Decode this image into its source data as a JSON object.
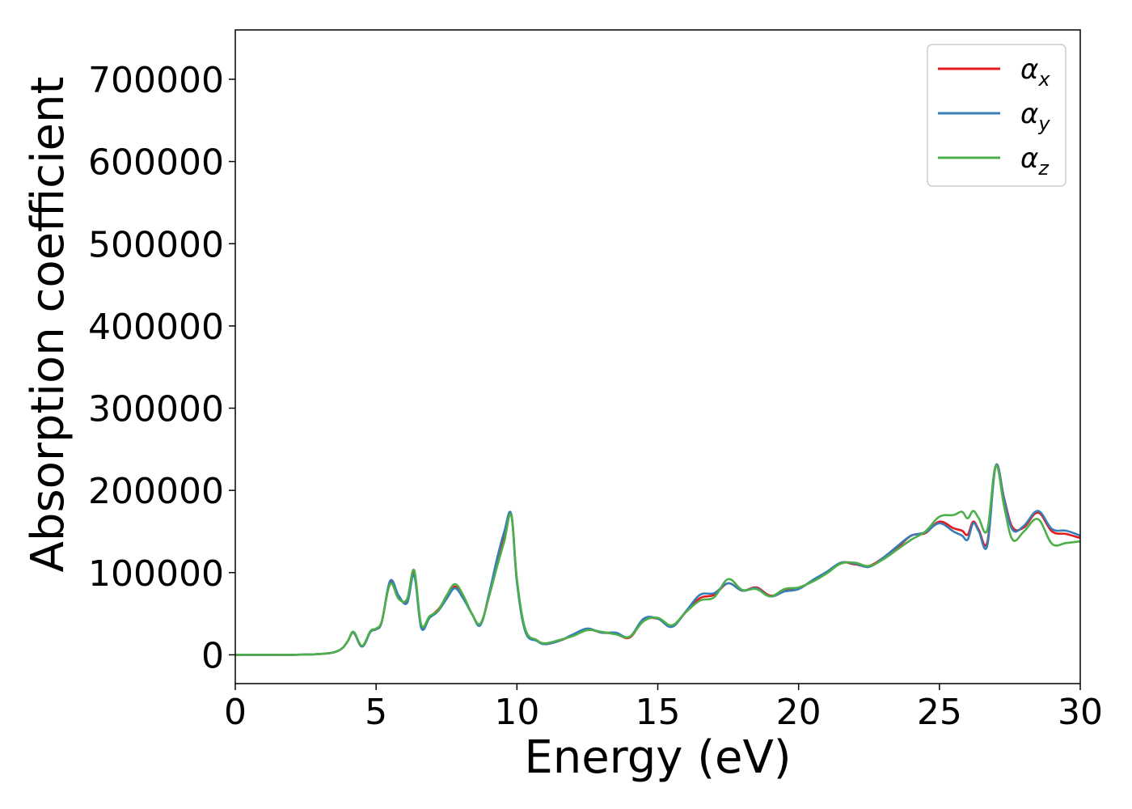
{
  "chart_data": {
    "type": "line",
    "title": "",
    "xlabel": "Energy (eV)",
    "ylabel": "Absorption coefficient",
    "xlim": [
      0,
      30
    ],
    "ylim": [
      -35000,
      760000
    ],
    "xticks": [
      0,
      5,
      10,
      15,
      20,
      25,
      30
    ],
    "yticks": [
      0,
      100000,
      200000,
      300000,
      400000,
      500000,
      600000,
      700000
    ],
    "xtick_labels": [
      "0",
      "5",
      "10",
      "15",
      "20",
      "25",
      "30"
    ],
    "ytick_labels": [
      "0",
      "100000",
      "200000",
      "300000",
      "400000",
      "500000",
      "600000",
      "700000"
    ],
    "grid": false,
    "legend_position": "top-right",
    "x": [
      0,
      1,
      2,
      3,
      3.5,
      3.8,
      4.0,
      4.2,
      4.5,
      4.8,
      5.0,
      5.2,
      5.5,
      5.8,
      6.1,
      6.35,
      6.6,
      6.9,
      7.2,
      7.5,
      7.8,
      8.1,
      8.4,
      8.7,
      9.0,
      9.3,
      9.55,
      9.8,
      10.0,
      10.3,
      10.7,
      11.0,
      11.5,
      12.0,
      12.5,
      13.0,
      13.5,
      14.0,
      14.5,
      15.0,
      15.5,
      16.0,
      16.5,
      17.0,
      17.5,
      18.0,
      18.5,
      19.0,
      19.5,
      20.0,
      20.5,
      21.0,
      21.5,
      22.0,
      22.5,
      23.0,
      23.5,
      24.0,
      24.5,
      25.0,
      25.5,
      25.8,
      26.0,
      26.2,
      26.4,
      26.7,
      27.0,
      27.3,
      27.6,
      28.0,
      28.5,
      29.0,
      29.5,
      30.0
    ],
    "series": [
      {
        "name": "α_x",
        "color": "#e41a1c",
        "values": [
          0,
          0,
          0,
          1000,
          3000,
          8000,
          17000,
          27000,
          10000,
          28000,
          31000,
          40000,
          88000,
          70000,
          65000,
          99000,
          35000,
          46000,
          55000,
          70000,
          83000,
          70000,
          50000,
          37000,
          70000,
          110000,
          142000,
          170000,
          90000,
          30000,
          18000,
          13000,
          17000,
          24000,
          31000,
          27000,
          26000,
          21000,
          42000,
          44000,
          35000,
          52000,
          69000,
          73000,
          87000,
          78000,
          82000,
          72000,
          78000,
          81000,
          90000,
          100000,
          112000,
          110000,
          108000,
          118000,
          130000,
          145000,
          148000,
          162000,
          154000,
          151000,
          146000,
          162000,
          152000,
          137000,
          230000,
          190000,
          155000,
          155000,
          173000,
          150000,
          147000,
          142000
        ]
      },
      {
        "name": "α_y",
        "color": "#377eb8",
        "values": [
          0,
          0,
          0,
          1000,
          3000,
          8000,
          17000,
          27000,
          10000,
          28000,
          31000,
          40000,
          90000,
          72000,
          63000,
          97000,
          33000,
          45000,
          53000,
          68000,
          81000,
          68000,
          50000,
          36000,
          73000,
          118000,
          150000,
          171000,
          88000,
          28000,
          17000,
          13000,
          17000,
          25000,
          32000,
          27000,
          27000,
          22000,
          44000,
          44000,
          34000,
          53000,
          73000,
          75000,
          87000,
          78000,
          81000,
          71000,
          77000,
          80000,
          91000,
          101000,
          112000,
          111000,
          107000,
          118000,
          132000,
          145000,
          149000,
          160000,
          150000,
          145000,
          140000,
          160000,
          150000,
          133000,
          230000,
          188000,
          152000,
          157000,
          175000,
          153000,
          151000,
          145000
        ]
      },
      {
        "name": "α_z",
        "color": "#4daf4a",
        "values": [
          0,
          0,
          0,
          1000,
          3000,
          8000,
          17000,
          28000,
          11000,
          29000,
          32000,
          41000,
          86000,
          68000,
          68000,
          103000,
          37000,
          47000,
          54000,
          72000,
          86000,
          72000,
          50000,
          38000,
          70000,
          108000,
          138000,
          170000,
          92000,
          31000,
          18000,
          14000,
          18000,
          23000,
          30000,
          28000,
          25000,
          22000,
          41000,
          45000,
          36000,
          52000,
          66000,
          70000,
          92000,
          79000,
          80000,
          71000,
          80000,
          82000,
          89000,
          99000,
          111000,
          112000,
          108000,
          116000,
          128000,
          140000,
          150000,
          168000,
          170000,
          174000,
          166000,
          175000,
          166000,
          152000,
          230000,
          180000,
          140000,
          150000,
          165000,
          135000,
          136000,
          138000
        ]
      }
    ]
  },
  "legend": {
    "entries": [
      {
        "symbol": "α",
        "sub": "x",
        "color": "#e41a1c"
      },
      {
        "symbol": "α",
        "sub": "y",
        "color": "#377eb8"
      },
      {
        "symbol": "α",
        "sub": "z",
        "color": "#4daf4a"
      }
    ]
  }
}
